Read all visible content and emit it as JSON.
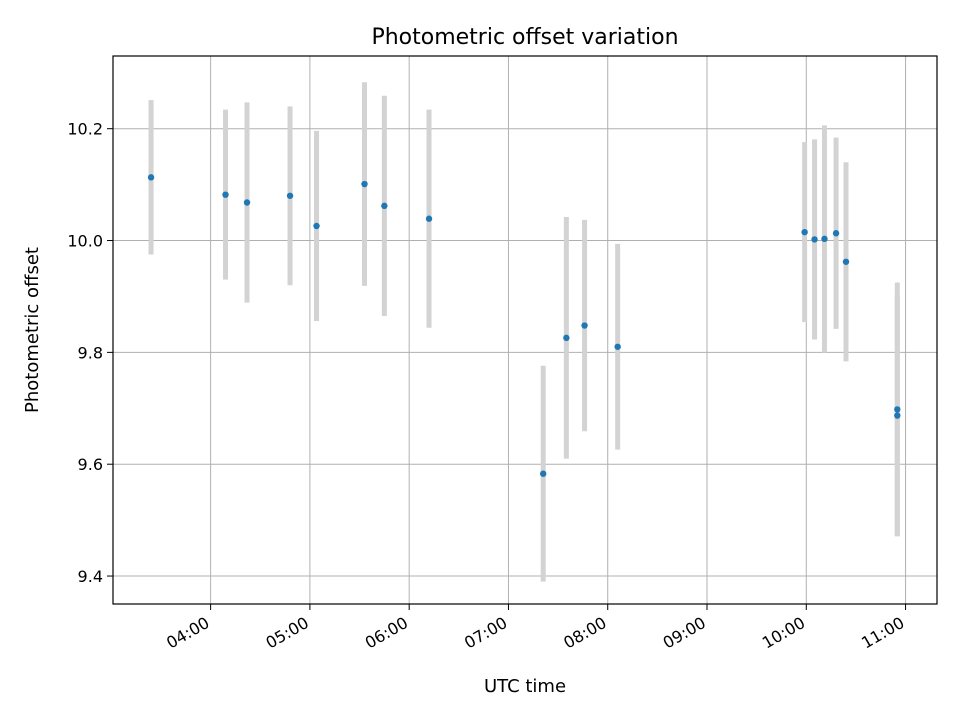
{
  "chart_data": {
    "type": "scatter",
    "title": "Photometric offset variation",
    "xlabel": "UTC time",
    "ylabel": "Photometric offset",
    "grid": true,
    "xlim": [
      "03:01",
      "11:19"
    ],
    "ylim": [
      9.35,
      10.33
    ],
    "x_ticks": [
      "04:00",
      "05:00",
      "06:00",
      "07:00",
      "08:00",
      "09:00",
      "10:00",
      "11:00"
    ],
    "y_ticks": [
      9.4,
      9.6,
      9.8,
      10.0,
      10.2
    ],
    "marker_color": "#1f77b4",
    "errorbar_color": "#d3d3d3",
    "points": [
      {
        "x": "03:24",
        "y": 10.113,
        "err": 0.138
      },
      {
        "x": "04:09",
        "y": 10.082,
        "err": 0.152
      },
      {
        "x": "04:22",
        "y": 10.068,
        "err": 0.179
      },
      {
        "x": "04:48",
        "y": 10.08,
        "err": 0.16
      },
      {
        "x": "05:04",
        "y": 10.026,
        "err": 0.17
      },
      {
        "x": "05:33",
        "y": 10.101,
        "err": 0.182
      },
      {
        "x": "05:45",
        "y": 10.062,
        "err": 0.197
      },
      {
        "x": "06:12",
        "y": 10.039,
        "err": 0.195
      },
      {
        "x": "07:21",
        "y": 9.583,
        "err": 0.193
      },
      {
        "x": "07:35",
        "y": 9.826,
        "err": 0.216
      },
      {
        "x": "07:46",
        "y": 9.848,
        "err": 0.189
      },
      {
        "x": "08:06",
        "y": 9.81,
        "err": 0.184
      },
      {
        "x": "09:59",
        "y": 10.015,
        "err": 0.161
      },
      {
        "x": "10:05",
        "y": 10.002,
        "err": 0.179
      },
      {
        "x": "10:11",
        "y": 10.003,
        "err": 0.203
      },
      {
        "x": "10:18",
        "y": 10.013,
        "err": 0.171
      },
      {
        "x": "10:24",
        "y": 9.962,
        "err": 0.178
      },
      {
        "x": "10:55",
        "y": 9.687,
        "err": 0.215
      },
      {
        "x": "10:55",
        "y": 9.698,
        "err": 0.227
      }
    ]
  }
}
